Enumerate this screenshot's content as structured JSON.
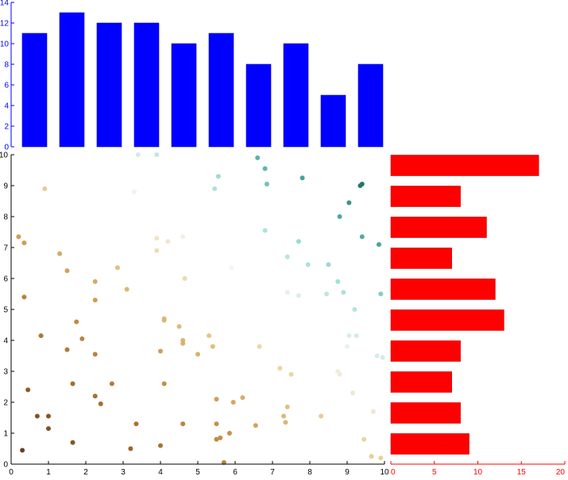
{
  "chart_data": [
    {
      "type": "bar",
      "role": "top-histogram",
      "orientation": "vertical",
      "color": "#0000ff",
      "axis_color": "#0000ff",
      "bin_centers": [
        0.5,
        1.5,
        2.5,
        3.5,
        4.5,
        5.5,
        6.5,
        7.5,
        8.5,
        9.5
      ],
      "values": [
        11,
        13,
        12,
        12,
        10,
        11,
        8,
        10,
        5,
        8
      ],
      "ylim": [
        0,
        14
      ],
      "yticks": [
        "0",
        "2",
        "4",
        "6",
        "8",
        "10",
        "12",
        "14"
      ],
      "grid": false
    },
    {
      "type": "scatter",
      "role": "main-scatter",
      "colormap": "brown-white-teal",
      "xlim": [
        0,
        10
      ],
      "ylim": [
        0,
        10
      ],
      "xticks": [
        "0",
        "1",
        "2",
        "3",
        "4",
        "5",
        "6",
        "7",
        "8",
        "9",
        "10"
      ],
      "yticks": [
        "0",
        "1",
        "2",
        "3",
        "4",
        "5",
        "6",
        "7",
        "8",
        "9",
        "10"
      ],
      "grid": false,
      "points": [
        {
          "x": 0.2,
          "y": 7.35
        },
        {
          "x": 0.35,
          "y": 7.15
        },
        {
          "x": 0.35,
          "y": 5.4
        },
        {
          "x": 0.45,
          "y": 2.4
        },
        {
          "x": 0.3,
          "y": 0.45
        },
        {
          "x": 0.7,
          "y": 1.55
        },
        {
          "x": 0.9,
          "y": 8.9
        },
        {
          "x": 0.8,
          "y": 4.15
        },
        {
          "x": 1.0,
          "y": 1.55
        },
        {
          "x": 1.0,
          "y": 1.15
        },
        {
          "x": 1.3,
          "y": 6.8
        },
        {
          "x": 1.5,
          "y": 6.25
        },
        {
          "x": 1.5,
          "y": 3.7
        },
        {
          "x": 1.65,
          "y": 2.6
        },
        {
          "x": 1.65,
          "y": 0.7
        },
        {
          "x": 1.75,
          "y": 4.6
        },
        {
          "x": 1.9,
          "y": 4.05
        },
        {
          "x": 2.25,
          "y": 5.9
        },
        {
          "x": 2.25,
          "y": 5.3
        },
        {
          "x": 2.25,
          "y": 3.55
        },
        {
          "x": 2.25,
          "y": 2.2
        },
        {
          "x": 2.4,
          "y": 1.95
        },
        {
          "x": 2.7,
          "y": 2.6
        },
        {
          "x": 2.85,
          "y": 6.35
        },
        {
          "x": 3.1,
          "y": 5.65
        },
        {
          "x": 3.2,
          "y": 0.5
        },
        {
          "x": 3.35,
          "y": 1.3
        },
        {
          "x": 3.3,
          "y": 8.8
        },
        {
          "x": 3.4,
          "y": 10.0
        },
        {
          "x": 3.9,
          "y": 7.3
        },
        {
          "x": 3.9,
          "y": 6.9
        },
        {
          "x": 3.9,
          "y": 10.0
        },
        {
          "x": 4.0,
          "y": 3.65
        },
        {
          "x": 4.0,
          "y": 0.6
        },
        {
          "x": 4.1,
          "y": 4.7
        },
        {
          "x": 4.1,
          "y": 4.65
        },
        {
          "x": 4.1,
          "y": 2.6
        },
        {
          "x": 4.2,
          "y": 7.2
        },
        {
          "x": 4.5,
          "y": 4.45
        },
        {
          "x": 4.6,
          "y": 4.0
        },
        {
          "x": 4.6,
          "y": 3.9
        },
        {
          "x": 4.6,
          "y": 1.3
        },
        {
          "x": 4.6,
          "y": 7.35
        },
        {
          "x": 4.65,
          "y": 6.0
        },
        {
          "x": 5.0,
          "y": 3.55
        },
        {
          "x": 5.3,
          "y": 4.15
        },
        {
          "x": 5.4,
          "y": 3.8
        },
        {
          "x": 5.5,
          "y": 2.1
        },
        {
          "x": 5.5,
          "y": 1.3
        },
        {
          "x": 5.5,
          "y": 0.8
        },
        {
          "x": 5.6,
          "y": 0.85
        },
        {
          "x": 5.7,
          "y": 0.05
        },
        {
          "x": 5.85,
          "y": 1.0
        },
        {
          "x": 5.95,
          "y": 2.0
        },
        {
          "x": 5.9,
          "y": 6.35
        },
        {
          "x": 6.2,
          "y": 2.15
        },
        {
          "x": 5.45,
          "y": 8.9
        },
        {
          "x": 5.55,
          "y": 9.3
        },
        {
          "x": 6.55,
          "y": 1.25
        },
        {
          "x": 6.65,
          "y": 3.8
        },
        {
          "x": 6.6,
          "y": 9.9
        },
        {
          "x": 6.8,
          "y": 9.55
        },
        {
          "x": 6.85,
          "y": 9.05
        },
        {
          "x": 6.8,
          "y": 7.55
        },
        {
          "x": 7.2,
          "y": 3.1
        },
        {
          "x": 7.3,
          "y": 1.55
        },
        {
          "x": 7.35,
          "y": 1.35
        },
        {
          "x": 7.4,
          "y": 1.85
        },
        {
          "x": 7.4,
          "y": 6.7
        },
        {
          "x": 7.4,
          "y": 5.55
        },
        {
          "x": 7.5,
          "y": 2.9
        },
        {
          "x": 7.7,
          "y": 7.2
        },
        {
          "x": 7.7,
          "y": 5.45
        },
        {
          "x": 7.8,
          "y": 9.25
        },
        {
          "x": 7.95,
          "y": 6.45
        },
        {
          "x": 8.3,
          "y": 1.55
        },
        {
          "x": 8.45,
          "y": 5.5
        },
        {
          "x": 8.5,
          "y": 6.45
        },
        {
          "x": 8.75,
          "y": 5.9
        },
        {
          "x": 8.75,
          "y": 3.0
        },
        {
          "x": 8.8,
          "y": 8.0
        },
        {
          "x": 8.8,
          "y": 2.9
        },
        {
          "x": 8.9,
          "y": 5.55
        },
        {
          "x": 9.05,
          "y": 8.45
        },
        {
          "x": 9.05,
          "y": 4.15
        },
        {
          "x": 9.0,
          "y": 3.8
        },
        {
          "x": 9.15,
          "y": 2.3
        },
        {
          "x": 9.2,
          "y": 5.0
        },
        {
          "x": 9.25,
          "y": 4.15
        },
        {
          "x": 9.35,
          "y": 9.0
        },
        {
          "x": 9.4,
          "y": 9.05
        },
        {
          "x": 9.4,
          "y": 7.35
        },
        {
          "x": 9.45,
          "y": 0.8
        },
        {
          "x": 9.65,
          "y": 0.25
        },
        {
          "x": 9.7,
          "y": 1.7
        },
        {
          "x": 9.8,
          "y": 3.5
        },
        {
          "x": 9.85,
          "y": 7.1
        },
        {
          "x": 9.9,
          "y": 5.5
        },
        {
          "x": 9.95,
          "y": 3.45
        },
        {
          "x": 9.9,
          "y": 0.2
        }
      ]
    },
    {
      "type": "bar",
      "role": "right-histogram",
      "orientation": "horizontal",
      "color": "#ff0000",
      "axis_color": "#ff0000",
      "bin_centers": [
        0.5,
        1.5,
        2.5,
        3.5,
        4.5,
        5.5,
        6.5,
        7.5,
        8.5,
        9.5
      ],
      "values": [
        9,
        8,
        7,
        8,
        13,
        12,
        7,
        11,
        8,
        17
      ],
      "xlim": [
        0,
        20
      ],
      "xticks": [
        "0",
        "5",
        "10",
        "15",
        "20"
      ],
      "grid": false
    }
  ]
}
